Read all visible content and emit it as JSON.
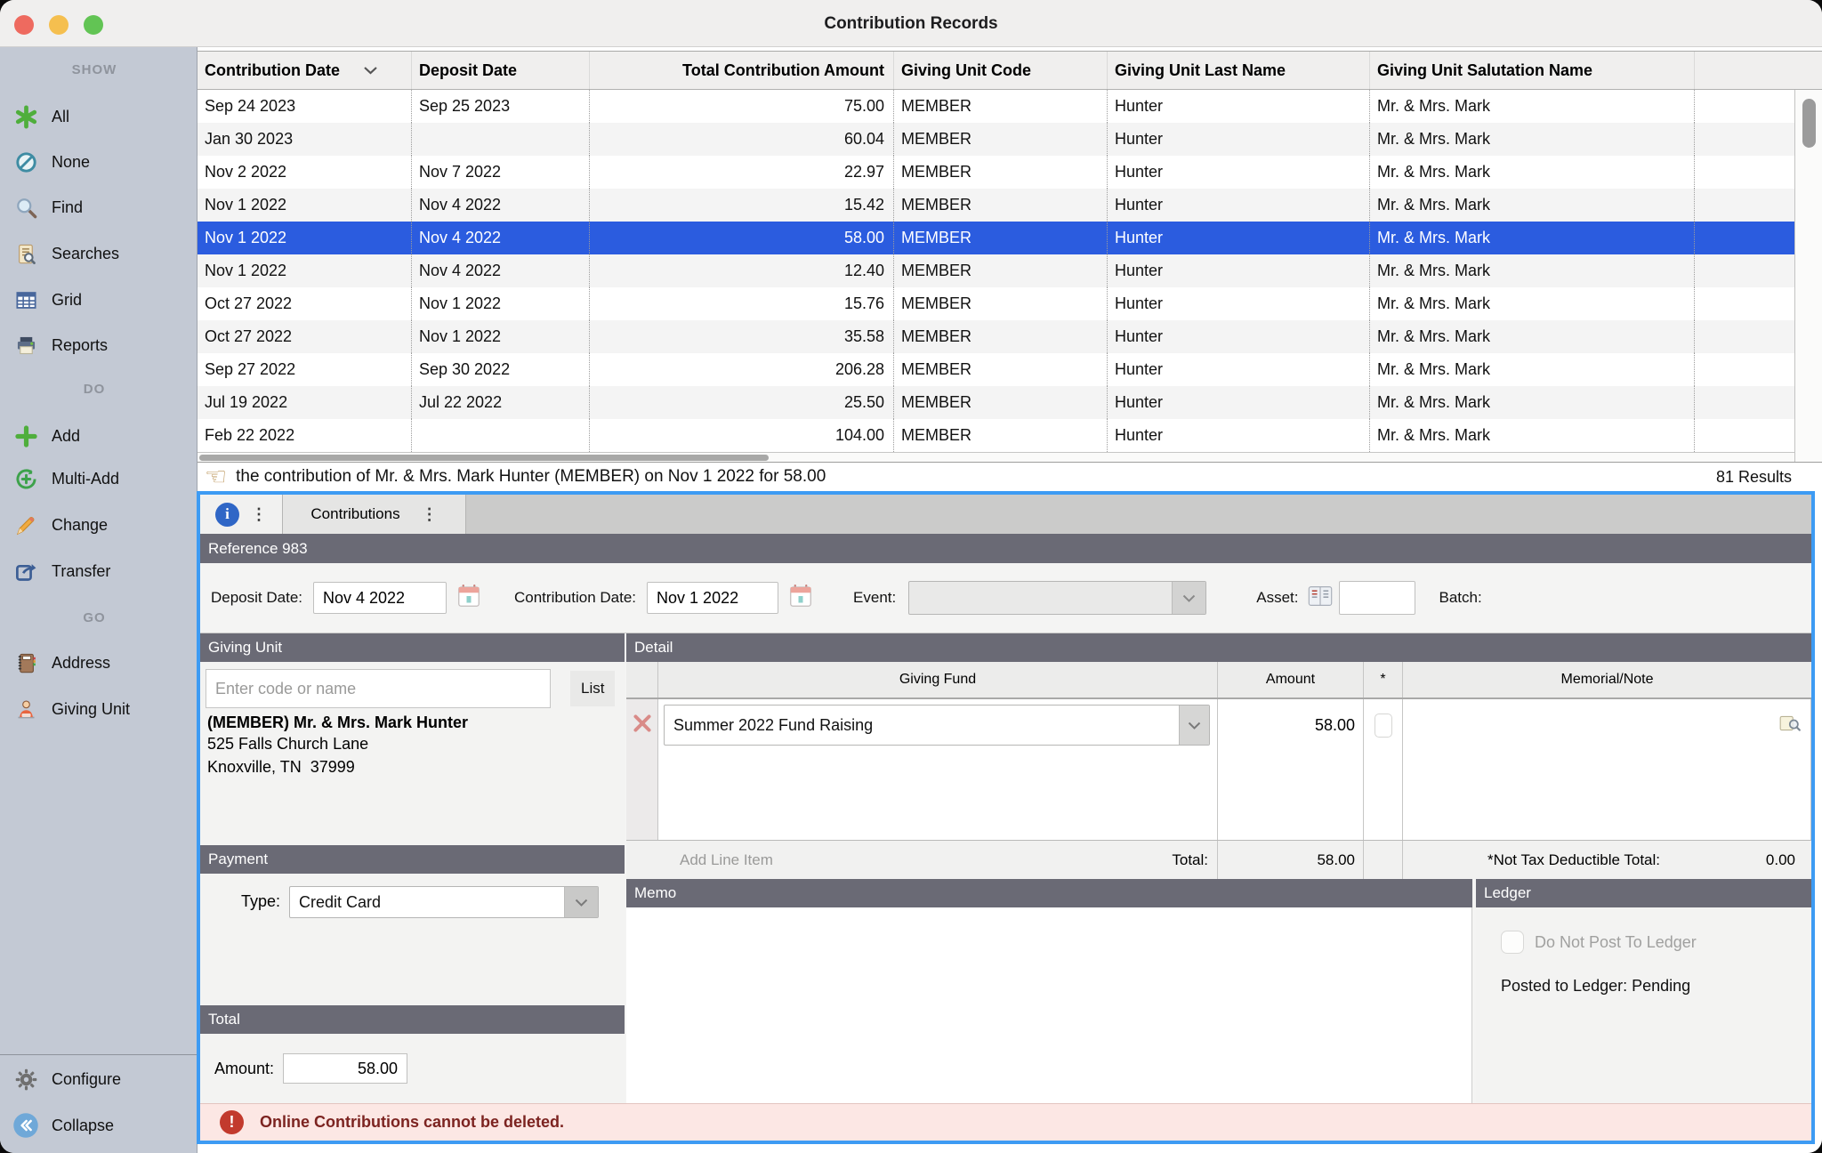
{
  "window": {
    "title": "Contribution Records"
  },
  "icons": {
    "pointing_hand": "☞",
    "info": "i",
    "kebab": "⋮",
    "exclaim": "!"
  },
  "colors": {
    "selection": "#2b5cdf",
    "panel-border": "#3d9bf3",
    "bar": "#6a6a75",
    "alert-bg": "#fce7e4",
    "alert-text": "#7c2320"
  },
  "sidebar": {
    "sections": [
      {
        "label": "SHOW",
        "items": [
          {
            "label": "All"
          },
          {
            "label": "None"
          },
          {
            "label": "Find"
          },
          {
            "label": "Searches"
          },
          {
            "label": "Grid"
          },
          {
            "label": "Reports"
          }
        ]
      },
      {
        "label": "DO",
        "items": [
          {
            "label": "Add"
          },
          {
            "label": "Multi-Add"
          },
          {
            "label": "Change"
          },
          {
            "label": "Transfer"
          }
        ]
      },
      {
        "label": "GO",
        "items": [
          {
            "label": "Address"
          },
          {
            "label": "Giving Unit"
          }
        ]
      }
    ],
    "footer": [
      {
        "label": "Configure"
      },
      {
        "label": "Collapse"
      }
    ]
  },
  "table": {
    "columns": [
      "Contribution Date",
      "Deposit Date",
      "Total Contribution Amount",
      "Giving Unit Code",
      "Giving Unit Last Name",
      "Giving Unit Salutation Name",
      ""
    ],
    "rows": [
      [
        "Sep 24 2023",
        "Sep 25 2023",
        "75.00",
        "MEMBER",
        "Hunter",
        "Mr. & Mrs. Mark"
      ],
      [
        "Jan 30 2023",
        "",
        "60.04",
        "MEMBER",
        "Hunter",
        "Mr. & Mrs. Mark"
      ],
      [
        "Nov 2 2022",
        "Nov 7 2022",
        "22.97",
        "MEMBER",
        "Hunter",
        "Mr. & Mrs. Mark"
      ],
      [
        "Nov 1 2022",
        "Nov 4 2022",
        "15.42",
        "MEMBER",
        "Hunter",
        "Mr. & Mrs. Mark"
      ],
      [
        "Nov 1 2022",
        "Nov 4 2022",
        "58.00",
        "MEMBER",
        "Hunter",
        "Mr. & Mrs. Mark"
      ],
      [
        "Nov 1 2022",
        "Nov 4 2022",
        "12.40",
        "MEMBER",
        "Hunter",
        "Mr. & Mrs. Mark"
      ],
      [
        "Oct 27 2022",
        "Nov 1 2022",
        "15.76",
        "MEMBER",
        "Hunter",
        "Mr. & Mrs. Mark"
      ],
      [
        "Oct 27 2022",
        "Nov 1 2022",
        "35.58",
        "MEMBER",
        "Hunter",
        "Mr. & Mrs. Mark"
      ],
      [
        "Sep 27 2022",
        "Sep 30 2022",
        "206.28",
        "MEMBER",
        "Hunter",
        "Mr. & Mrs. Mark"
      ],
      [
        "Jul 19 2022",
        "Jul 22 2022",
        "25.50",
        "MEMBER",
        "Hunter",
        "Mr. & Mrs. Mark"
      ],
      [
        "Feb 22 2022",
        "",
        "104.00",
        "MEMBER",
        "Hunter",
        "Mr. & Mrs. Mark"
      ]
    ],
    "selected_row": 4
  },
  "status": {
    "text": "the contribution of Mr. & Mrs. Mark Hunter (MEMBER) on Nov 1 2022 for 58.00",
    "results": "81 Results"
  },
  "panel": {
    "tabs": {
      "active": "Contributions"
    },
    "reference": "Reference 983",
    "fields": {
      "deposit_date_label": "Deposit Date:",
      "deposit_date": "Nov 4 2022",
      "contribution_date_label": "Contribution Date:",
      "contribution_date": "Nov 1 2022",
      "event_label": "Event:",
      "event_value": "",
      "asset_label": "Asset:",
      "asset_value": "",
      "batch_label": "Batch:"
    },
    "giving_unit": {
      "header": "Giving Unit",
      "search_placeholder": "Enter code or name",
      "list_button": "List",
      "name": "(MEMBER) Mr. & Mrs. Mark Hunter",
      "address_line1": "525 Falls Church Lane",
      "address_line2": "Knoxville, TN  37999"
    },
    "detail": {
      "header": "Detail",
      "columns": {
        "fund": "Giving Fund",
        "amount": "Amount",
        "star": "*",
        "memorial": "Memorial/Note"
      },
      "line_items": [
        {
          "fund": "Summer 2022 Fund Raising",
          "amount": "58.00",
          "memorial": ""
        }
      ],
      "add_line_item": "Add Line Item",
      "total_label": "Total:",
      "total": "58.00",
      "ntd_label": "*Not Tax Deductible Total:",
      "ntd_total": "0.00"
    },
    "payment": {
      "header": "Payment",
      "type_label": "Type:",
      "type_value": "Credit Card"
    },
    "total": {
      "header": "Total",
      "amount_label": "Amount:",
      "amount": "58.00"
    },
    "memo": {
      "header": "Memo",
      "value": ""
    },
    "ledger": {
      "header": "Ledger",
      "checkbox_label": "Do Not Post To Ledger",
      "checked": false,
      "posted_text": "Posted to Ledger: Pending"
    },
    "alert": {
      "text": "Online Contributions cannot be deleted."
    }
  }
}
